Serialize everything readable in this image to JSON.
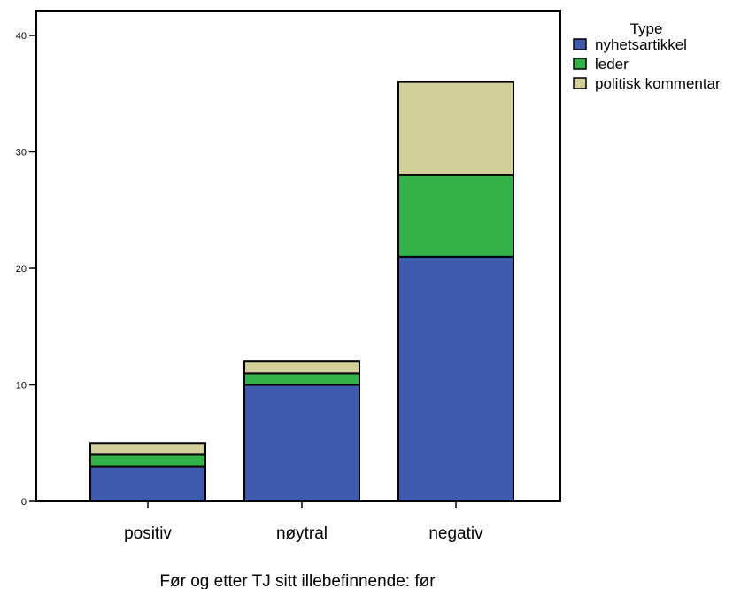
{
  "chart_data": {
    "type": "bar",
    "stacked": true,
    "title": "",
    "xlabel": "Før og etter TJ sitt illebefinnende: før",
    "ylabel": "",
    "categories": [
      "positiv",
      "nøytral",
      "negativ"
    ],
    "series": [
      {
        "name": "nyhetsartikkel",
        "color": "#3f5aad",
        "values": [
          3,
          10,
          21
        ]
      },
      {
        "name": "leder",
        "color": "#33b24a",
        "values": [
          1,
          1,
          7
        ]
      },
      {
        "name": "politisk kommentar",
        "color": "#d3cf98",
        "values": [
          1,
          1,
          8
        ]
      }
    ],
    "ylim": [
      0,
      45
    ],
    "yticks": [
      0,
      10,
      20,
      30,
      40
    ],
    "legend": {
      "title": "Type",
      "placement": "top-right, outside plot"
    },
    "grid": false
  }
}
